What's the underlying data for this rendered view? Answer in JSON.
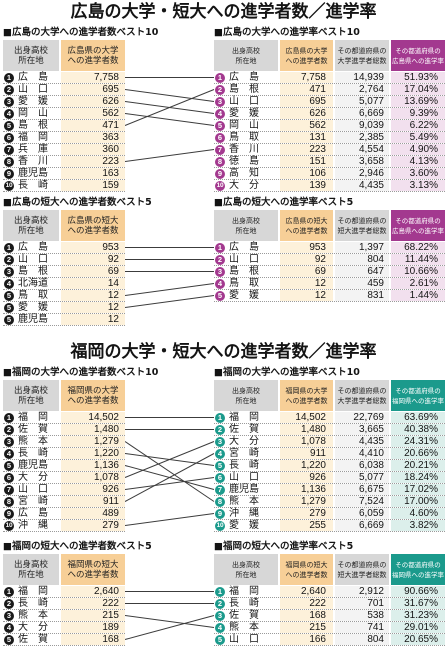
{
  "colors": {
    "left_badge": "#1a1a1a",
    "header_gray": "#d7d7d7",
    "header_peach": "#f7cf97",
    "count_cell": "#fdf1da",
    "total_cell": "#f3f3f3",
    "connector": "#3c3c3c"
  },
  "chart_data": {
    "type": "table",
    "groups": [
      {
        "title": "広島の大学・短大への進学者数／進学率",
        "accent": "#a3398f",
        "rate_cell": "#f2e0ee",
        "blocks": [
          {
            "left": {
              "heading": "■広島の大学への進学者数ベスト10",
              "columns": [
                "出身高校\n所在地",
                "広島県の大学\nへの進学者数"
              ],
              "rows": [
                {
                  "rank": "1",
                  "pref": "広島",
                  "count": "7,758"
                },
                {
                  "rank": "2",
                  "pref": "山口",
                  "count": "695"
                },
                {
                  "rank": "3",
                  "pref": "愛媛",
                  "count": "626"
                },
                {
                  "rank": "4",
                  "pref": "岡山",
                  "count": "562"
                },
                {
                  "rank": "5",
                  "pref": "島根",
                  "count": "471"
                },
                {
                  "rank": "6",
                  "pref": "福岡",
                  "count": "363"
                },
                {
                  "rank": "7",
                  "pref": "兵庫",
                  "count": "360"
                },
                {
                  "rank": "8",
                  "pref": "香川",
                  "count": "223"
                },
                {
                  "rank": "9",
                  "pref": "鹿児島",
                  "count": "163"
                },
                {
                  "rank": "10",
                  "pref": "長崎",
                  "count": "159"
                }
              ]
            },
            "right": {
              "heading": "■広島の大学への進学率ベスト10",
              "columns": [
                "出身高校\n所在地",
                "広島県の大学\nへの進学者数",
                "その都道府県の\n大学進学者総数",
                "その都道府県の\n広島県への進学率"
              ],
              "rows": [
                {
                  "rank": "1",
                  "pref": "広島",
                  "count": "7,758",
                  "total": "14,939",
                  "rate": "51.93%"
                },
                {
                  "rank": "2",
                  "pref": "島根",
                  "count": "471",
                  "total": "2,764",
                  "rate": "17.04%"
                },
                {
                  "rank": "3",
                  "pref": "山口",
                  "count": "695",
                  "total": "5,077",
                  "rate": "13.69%"
                },
                {
                  "rank": "4",
                  "pref": "愛媛",
                  "count": "626",
                  "total": "6,669",
                  "rate": "9.39%"
                },
                {
                  "rank": "5",
                  "pref": "岡山",
                  "count": "562",
                  "total": "9,039",
                  "rate": "6.22%"
                },
                {
                  "rank": "6",
                  "pref": "鳥取",
                  "count": "131",
                  "total": "2,385",
                  "rate": "5.49%"
                },
                {
                  "rank": "7",
                  "pref": "香川",
                  "count": "223",
                  "total": "4,554",
                  "rate": "4.90%"
                },
                {
                  "rank": "8",
                  "pref": "徳島",
                  "count": "151",
                  "total": "3,658",
                  "rate": "4.13%"
                },
                {
                  "rank": "9",
                  "pref": "高知",
                  "count": "106",
                  "total": "2,946",
                  "rate": "3.60%"
                },
                {
                  "rank": "10",
                  "pref": "大分",
                  "count": "139",
                  "total": "4,435",
                  "rate": "3.13%"
                }
              ]
            }
          },
          {
            "left": {
              "heading": "■広島の短大への進学者数ベスト5",
              "columns": [
                "出身高校\n所在地",
                "広島県の短大\nへの進学者数"
              ],
              "rows": [
                {
                  "rank": "1",
                  "pref": "広島",
                  "count": "953"
                },
                {
                  "rank": "2",
                  "pref": "山口",
                  "count": "92"
                },
                {
                  "rank": "3",
                  "pref": "島根",
                  "count": "69"
                },
                {
                  "rank": "4",
                  "pref": "北海道",
                  "count": "14"
                },
                {
                  "rank": "5",
                  "pref": "鳥取",
                  "count": "12"
                },
                {
                  "rank": "5",
                  "pref": "愛媛",
                  "count": "12"
                },
                {
                  "rank": "5",
                  "pref": "鹿児島",
                  "count": "12"
                }
              ]
            },
            "right": {
              "heading": "■広島の短大への進学率ベスト5",
              "columns": [
                "出身高校\n所在地",
                "広島県の短大\nへの進学者数",
                "その都道府県の\n短大進学者総数",
                "その都道府県の\n広島県への進学率"
              ],
              "rows": [
                {
                  "rank": "1",
                  "pref": "広島",
                  "count": "953",
                  "total": "1,397",
                  "rate": "68.22%"
                },
                {
                  "rank": "2",
                  "pref": "山口",
                  "count": "92",
                  "total": "804",
                  "rate": "11.44%"
                },
                {
                  "rank": "3",
                  "pref": "島根",
                  "count": "69",
                  "total": "647",
                  "rate": "10.66%"
                },
                {
                  "rank": "4",
                  "pref": "鳥取",
                  "count": "12",
                  "total": "459",
                  "rate": "2.61%"
                },
                {
                  "rank": "5",
                  "pref": "愛媛",
                  "count": "12",
                  "total": "831",
                  "rate": "1.44%"
                }
              ]
            }
          }
        ]
      },
      {
        "title": "福岡の大学・短大への進学者数／進学率",
        "accent": "#1b9a8c",
        "rate_cell": "#dcefeb",
        "blocks": [
          {
            "left": {
              "heading": "■福岡の大学への進学者数ベスト10",
              "columns": [
                "出身高校\n所在地",
                "福岡県の大学\nへの進学者数"
              ],
              "rows": [
                {
                  "rank": "1",
                  "pref": "福岡",
                  "count": "14,502"
                },
                {
                  "rank": "2",
                  "pref": "佐賀",
                  "count": "1,480"
                },
                {
                  "rank": "3",
                  "pref": "熊本",
                  "count": "1,279"
                },
                {
                  "rank": "4",
                  "pref": "長崎",
                  "count": "1,220"
                },
                {
                  "rank": "5",
                  "pref": "鹿児島",
                  "count": "1,136"
                },
                {
                  "rank": "6",
                  "pref": "大分",
                  "count": "1,078"
                },
                {
                  "rank": "7",
                  "pref": "山口",
                  "count": "926"
                },
                {
                  "rank": "8",
                  "pref": "宮崎",
                  "count": "911"
                },
                {
                  "rank": "9",
                  "pref": "広島",
                  "count": "489"
                },
                {
                  "rank": "10",
                  "pref": "沖縄",
                  "count": "279"
                }
              ]
            },
            "right": {
              "heading": "■福岡の大学への進学率ベスト10",
              "columns": [
                "出身高校\n所在地",
                "福岡県の大学\nへの進学者数",
                "その都道府県の\n大学進学者総数",
                "その都道府県の\n福岡県への進学率"
              ],
              "rows": [
                {
                  "rank": "1",
                  "pref": "福岡",
                  "count": "14,502",
                  "total": "22,769",
                  "rate": "63.69%"
                },
                {
                  "rank": "2",
                  "pref": "佐賀",
                  "count": "1,480",
                  "total": "3,665",
                  "rate": "40.38%"
                },
                {
                  "rank": "3",
                  "pref": "大分",
                  "count": "1,078",
                  "total": "4,435",
                  "rate": "24.31%"
                },
                {
                  "rank": "4",
                  "pref": "宮崎",
                  "count": "911",
                  "total": "4,410",
                  "rate": "20.66%"
                },
                {
                  "rank": "5",
                  "pref": "長崎",
                  "count": "1,220",
                  "total": "6,038",
                  "rate": "20.21%"
                },
                {
                  "rank": "6",
                  "pref": "山口",
                  "count": "926",
                  "total": "5,077",
                  "rate": "18.24%"
                },
                {
                  "rank": "7",
                  "pref": "鹿児島",
                  "count": "1,136",
                  "total": "6,675",
                  "rate": "17.02%"
                },
                {
                  "rank": "8",
                  "pref": "熊本",
                  "count": "1,279",
                  "total": "7,524",
                  "rate": "17.00%"
                },
                {
                  "rank": "9",
                  "pref": "沖縄",
                  "count": "279",
                  "total": "6,059",
                  "rate": "4.60%"
                },
                {
                  "rank": "10",
                  "pref": "愛媛",
                  "count": "255",
                  "total": "6,669",
                  "rate": "3.82%"
                }
              ]
            }
          },
          {
            "left": {
              "heading": "■福岡の短大への進学者数ベスト5",
              "columns": [
                "出身高校\n所在地",
                "福岡県の短大\nへの進学者数"
              ],
              "rows": [
                {
                  "rank": "1",
                  "pref": "福岡",
                  "count": "2,640"
                },
                {
                  "rank": "2",
                  "pref": "長崎",
                  "count": "222"
                },
                {
                  "rank": "3",
                  "pref": "熊本",
                  "count": "215"
                },
                {
                  "rank": "4",
                  "pref": "大分",
                  "count": "189"
                },
                {
                  "rank": "5",
                  "pref": "佐賀",
                  "count": "168"
                }
              ]
            },
            "right": {
              "heading": "■福岡の短大への進学率ベスト5",
              "columns": [
                "出身高校\n所在地",
                "福岡県の短大\nへの進学者数",
                "その都道府県の\n短大進学者総数",
                "その都道府県の\n福岡県への進学率"
              ],
              "rows": [
                {
                  "rank": "1",
                  "pref": "福岡",
                  "count": "2,640",
                  "total": "2,912",
                  "rate": "90.66%"
                },
                {
                  "rank": "2",
                  "pref": "長崎",
                  "count": "222",
                  "total": "701",
                  "rate": "31.67%"
                },
                {
                  "rank": "3",
                  "pref": "佐賀",
                  "count": "168",
                  "total": "538",
                  "rate": "31.23%"
                },
                {
                  "rank": "4",
                  "pref": "熊本",
                  "count": "215",
                  "total": "741",
                  "rate": "29.01%"
                },
                {
                  "rank": "5",
                  "pref": "山口",
                  "count": "166",
                  "total": "804",
                  "rate": "20.65%"
                }
              ]
            }
          }
        ]
      }
    ]
  }
}
